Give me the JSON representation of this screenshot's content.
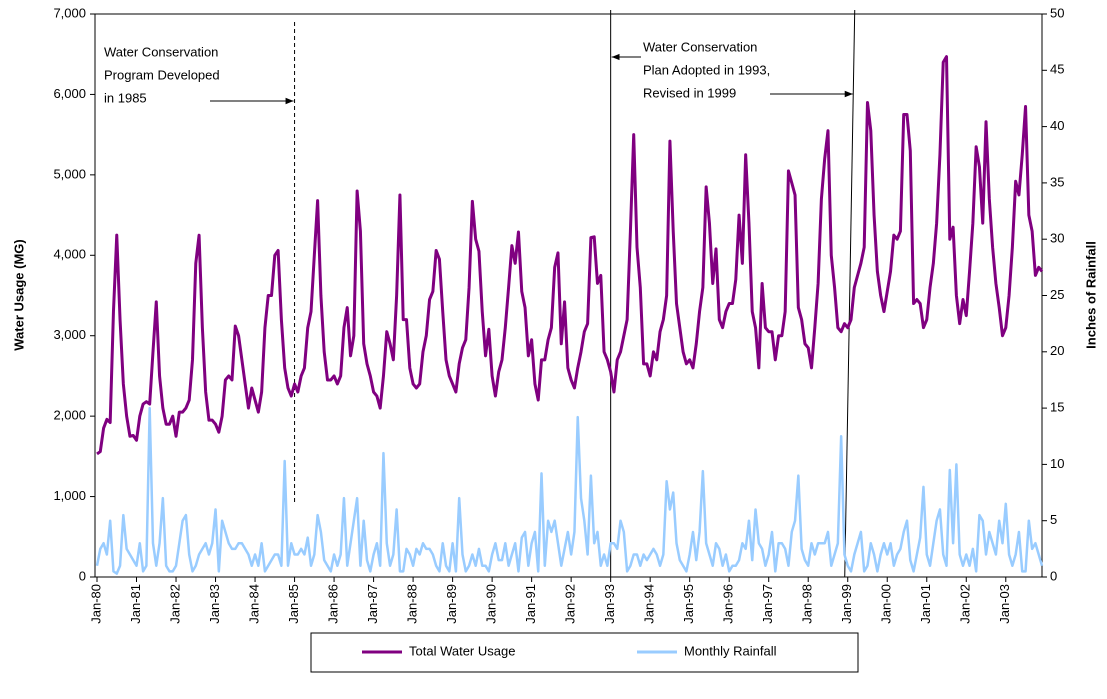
{
  "chart_data": {
    "type": "line",
    "y_label": "Water Usage (MG)",
    "y2_label": "Inches of Rainfall",
    "annotations": [
      [
        "Water Conservation",
        "Program Developed",
        "in 1985"
      ],
      [
        "Water Conservation",
        "Plan Adopted in 1993,",
        "Revised in 1999"
      ]
    ],
    "categories": [
      "Jan-80",
      null,
      null,
      null,
      null,
      null,
      null,
      null,
      null,
      null,
      null,
      null,
      "Jan-81",
      null,
      null,
      null,
      null,
      null,
      null,
      null,
      null,
      null,
      null,
      null,
      "Jan-82",
      null,
      null,
      null,
      null,
      null,
      null,
      null,
      null,
      null,
      null,
      null,
      "Jan-83",
      null,
      null,
      null,
      null,
      null,
      null,
      null,
      null,
      null,
      null,
      null,
      "Jan-84",
      null,
      null,
      null,
      null,
      null,
      null,
      null,
      null,
      null,
      null,
      null,
      "Jan-85",
      null,
      null,
      null,
      null,
      null,
      null,
      null,
      null,
      null,
      null,
      null,
      "Jan-86",
      null,
      null,
      null,
      null,
      null,
      null,
      null,
      null,
      null,
      null,
      null,
      "Jan-87",
      null,
      null,
      null,
      null,
      null,
      null,
      null,
      null,
      null,
      null,
      null,
      "Jan-88",
      null,
      null,
      null,
      null,
      null,
      null,
      null,
      null,
      null,
      null,
      null,
      "Jan-89",
      null,
      null,
      null,
      null,
      null,
      null,
      null,
      null,
      null,
      null,
      null,
      "Jan-90",
      null,
      null,
      null,
      null,
      null,
      null,
      null,
      null,
      null,
      null,
      null,
      "Jan-91",
      null,
      null,
      null,
      null,
      null,
      null,
      null,
      null,
      null,
      null,
      null,
      "Jan-92",
      null,
      null,
      null,
      null,
      null,
      null,
      null,
      null,
      null,
      null,
      null,
      "Jan-93",
      null,
      null,
      null,
      null,
      null,
      null,
      null,
      null,
      null,
      null,
      null,
      "Jan-94",
      null,
      null,
      null,
      null,
      null,
      null,
      null,
      null,
      null,
      null,
      null,
      "Jan-95",
      null,
      null,
      null,
      null,
      null,
      null,
      null,
      null,
      null,
      null,
      null,
      "Jan-96",
      null,
      null,
      null,
      null,
      null,
      null,
      null,
      null,
      null,
      null,
      null,
      "Jan-97",
      null,
      null,
      null,
      null,
      null,
      null,
      null,
      null,
      null,
      null,
      null,
      "Jan-98",
      null,
      null,
      null,
      null,
      null,
      null,
      null,
      null,
      null,
      null,
      null,
      "Jan-99",
      null,
      null,
      null,
      null,
      null,
      null,
      null,
      null,
      null,
      null,
      null,
      "Jan-00",
      null,
      null,
      null,
      null,
      null,
      null,
      null,
      null,
      null,
      null,
      null,
      "Jan-01",
      null,
      null,
      null,
      null,
      null,
      null,
      null,
      null,
      null,
      null,
      null,
      "Jan-02",
      null,
      null,
      null,
      null,
      null,
      null,
      null,
      null,
      null,
      null,
      null,
      "Jan-03",
      null,
      null,
      null,
      null,
      null,
      null,
      null,
      null,
      null,
      null,
      null
    ],
    "series": [
      {
        "name": "Total Water Usage",
        "color": "#800080",
        "values": [
          1530,
          1560,
          1850,
          1960,
          1920,
          3300,
          4250,
          3200,
          2400,
          2000,
          1750,
          1760,
          1700,
          2000,
          2150,
          2180,
          2150,
          2800,
          3420,
          2500,
          2100,
          1900,
          1900,
          2000,
          1750,
          2050,
          2050,
          2100,
          2200,
          2700,
          3900,
          4250,
          3100,
          2300,
          1950,
          1950,
          1900,
          1800,
          2000,
          2450,
          2500,
          2450,
          3120,
          3000,
          2700,
          2400,
          2100,
          2350,
          2200,
          2050,
          2300,
          3100,
          3500,
          3500,
          4000,
          4060,
          3200,
          2600,
          2350,
          2250,
          2400,
          2300,
          2500,
          2600,
          3100,
          3300,
          4000,
          4680,
          3500,
          2800,
          2450,
          2450,
          2500,
          2400,
          2500,
          3100,
          3350,
          2750,
          3000,
          4800,
          4300,
          2900,
          2650,
          2500,
          2300,
          2250,
          2100,
          2500,
          3050,
          2900,
          2700,
          3500,
          4750,
          3200,
          3200,
          2600,
          2400,
          2350,
          2400,
          2800,
          3000,
          3450,
          3550,
          4060,
          3950,
          3300,
          2700,
          2500,
          2400,
          2300,
          2650,
          2850,
          2950,
          3600,
          4670,
          4200,
          4050,
          3300,
          2750,
          3080,
          2500,
          2250,
          2550,
          2700,
          3100,
          3600,
          4120,
          3900,
          4290,
          3550,
          3350,
          2750,
          2950,
          2400,
          2200,
          2700,
          2700,
          2950,
          3100,
          3850,
          4030,
          2900,
          3420,
          2600,
          2450,
          2350,
          2600,
          2800,
          3050,
          3150,
          4220,
          4230,
          3650,
          3750,
          2800,
          2700,
          2550,
          2300,
          2700,
          2800,
          3000,
          3200,
          4300,
          5500,
          4100,
          3600,
          2650,
          2650,
          2500,
          2800,
          2700,
          3050,
          3200,
          3500,
          5420,
          4300,
          3400,
          3100,
          2800,
          2650,
          2700,
          2600,
          2900,
          3300,
          3600,
          4850,
          4400,
          3650,
          4080,
          3200,
          3100,
          3300,
          3400,
          3400,
          3700,
          4500,
          3900,
          5250,
          4400,
          3300,
          3100,
          2600,
          3650,
          3100,
          3050,
          3050,
          2700,
          3000,
          3000,
          3300,
          5050,
          4900,
          4750,
          3350,
          3200,
          2900,
          2850,
          2600,
          3100,
          3650,
          4700,
          5200,
          5550,
          4000,
          3600,
          3100,
          3050,
          3150,
          3100,
          3200,
          3600,
          3750,
          3900,
          4100,
          5900,
          5550,
          4500,
          3800,
          3500,
          3300,
          3550,
          3800,
          4250,
          4200,
          4300,
          5750,
          5750,
          5300,
          3400,
          3450,
          3400,
          3100,
          3200,
          3600,
          3900,
          4400,
          5250,
          6400,
          6470,
          4200,
          4350,
          3500,
          3150,
          3450,
          3250,
          3800,
          4400,
          5350,
          5100,
          4400,
          5660,
          4700,
          4100,
          3650,
          3350,
          3000,
          3100,
          3500,
          4100,
          4920,
          4750,
          5250,
          5850,
          4500,
          4300,
          3750,
          3850,
          3800
        ]
      },
      {
        "name": "Monthly Rainfall",
        "color": "#99ccff",
        "axis": "y2",
        "values": [
          1,
          2.5,
          3,
          2,
          5,
          0.5,
          0.3,
          1,
          5.5,
          2.5,
          2,
          1.5,
          1,
          3,
          0.5,
          1,
          15,
          3,
          1,
          3,
          7,
          1,
          0.5,
          0.5,
          1,
          3,
          5,
          5.5,
          2,
          0.5,
          1,
          2,
          2.5,
          3,
          2,
          3,
          6,
          0.5,
          5,
          4,
          3,
          2.5,
          2.5,
          3,
          3,
          2.5,
          2,
          1,
          2,
          1,
          3,
          0.5,
          1,
          1.5,
          2,
          2,
          1,
          10.3,
          1,
          3,
          2,
          2,
          2.5,
          2,
          3.5,
          1,
          2,
          5.5,
          4,
          1.5,
          1,
          0.5,
          2,
          1,
          2,
          7,
          1,
          3,
          5,
          7,
          1,
          5,
          1.5,
          0.5,
          2,
          3,
          1,
          11,
          3,
          1,
          2,
          6,
          0.5,
          0.5,
          2.5,
          2,
          1,
          2.5,
          2,
          3,
          2.5,
          2.5,
          2,
          1,
          0.5,
          3,
          1,
          0.5,
          3,
          0.5,
          7,
          2,
          0.5,
          1,
          2,
          1,
          2.5,
          1,
          1,
          0.5,
          2,
          3,
          1.5,
          1.5,
          3,
          1,
          2,
          3,
          0.5,
          3.5,
          4,
          1,
          3,
          4,
          0.5,
          9.2,
          1,
          5,
          4,
          5,
          3,
          1,
          2.5,
          4,
          2,
          4,
          14.2,
          7,
          5,
          2,
          9,
          3,
          4,
          1,
          2,
          1,
          3,
          3,
          2.5,
          5,
          4,
          0.5,
          1,
          2,
          2,
          1,
          2,
          1.5,
          2,
          2.5,
          2,
          1,
          2,
          8.5,
          6,
          7.5,
          3,
          1.5,
          1,
          0.5,
          2,
          4,
          1.5,
          4,
          9.4,
          3,
          2,
          1,
          3,
          2.5,
          1,
          2,
          0.5,
          1,
          1,
          1.5,
          3,
          2.5,
          5,
          1.5,
          6,
          3,
          2.5,
          1,
          2,
          4,
          0.5,
          3,
          3,
          2.5,
          1,
          4,
          5,
          9,
          2.5,
          1.5,
          1,
          3,
          2,
          3,
          3,
          3,
          4,
          1,
          2,
          3,
          12.5,
          2,
          1,
          0.5,
          2,
          3,
          4,
          0.5,
          1,
          3,
          2,
          0.5,
          2,
          3,
          2,
          3,
          1,
          2,
          2.5,
          4,
          5,
          1.5,
          0.5,
          2,
          3.5,
          8,
          2,
          1,
          3,
          5,
          6,
          2,
          1,
          9.5,
          3,
          10,
          2,
          1,
          2,
          1,
          2.5,
          0.5,
          5.5,
          5,
          2,
          4,
          3,
          2,
          5,
          3,
          6.5,
          2,
          1,
          2,
          4,
          0.5,
          0.5,
          5,
          2.5,
          3,
          2,
          1
        ]
      }
    ],
    "ylim": [
      0,
      7000
    ],
    "yticks": [
      0,
      {
        "value": 1000,
        "label": "1,000"
      },
      {
        "value": 2000,
        "label": "2,000"
      },
      {
        "value": 3000,
        "label": "3,000"
      },
      {
        "value": 4000,
        "label": "4,000"
      },
      {
        "value": 5000,
        "label": "5,000"
      },
      {
        "value": 6000,
        "label": "6,000"
      },
      {
        "value": 7000,
        "label": "7,000"
      }
    ],
    "y2lim": [
      0,
      50
    ],
    "y2ticks": [
      0,
      5,
      10,
      15,
      20,
      25,
      30,
      35,
      40,
      45,
      50
    ],
    "grid": false,
    "legend": "bottom"
  }
}
